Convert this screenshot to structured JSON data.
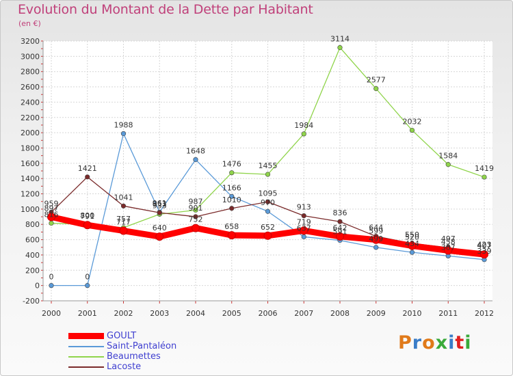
{
  "header": {
    "title": "Evolution du Montant de la Dette par Habitant",
    "subtitle": "(en €)"
  },
  "logo": {
    "text": "Proxiti",
    "colors": [
      "#e07a1a",
      "#3a7dc8",
      "#e07a1a",
      "#3aaa3a",
      "#3a7dc8",
      "#e02020",
      "#3aaa3a"
    ]
  },
  "chart_data": {
    "type": "line",
    "x": [
      "2000",
      "2001",
      "2002",
      "2003",
      "2004",
      "2005",
      "2006",
      "2007",
      "2008",
      "2009",
      "2010",
      "2011",
      "2012"
    ],
    "ylim": [
      -200,
      3200
    ],
    "yticks": [
      -200,
      0,
      200,
      400,
      600,
      800,
      1000,
      1200,
      1400,
      1600,
      1800,
      2000,
      2200,
      2400,
      2600,
      2800,
      3000,
      3200
    ],
    "grid": true,
    "legend": "bottom-left",
    "series": [
      {
        "name": "GOULT",
        "color": "#ff0000",
        "values": [
          897,
          791,
          717,
          640,
          752,
          658,
          652,
          719,
          642,
          599,
          520,
          458,
          407
        ],
        "labels": [
          "897",
          "791",
          "717",
          "640",
          "752",
          "658",
          "652",
          "719",
          "642",
          "599",
          "520",
          "458",
          "407"
        ]
      },
      {
        "name": "Saint-Pantaléon",
        "color": "#5a9ad8",
        "values": [
          0,
          0,
          1988,
          961,
          1648,
          1166,
          970,
          637,
          591,
          499,
          434,
          387,
          339
        ],
        "labels": [
          "0",
          "0",
          "1988",
          "961",
          "1648",
          "1166",
          "970",
          "637",
          "591",
          "499",
          "434",
          "387",
          "339"
        ]
      },
      {
        "name": "Beaumettes",
        "color": "#8fd44a",
        "values": [
          816,
          800,
          757,
          933,
          987,
          1476,
          1455,
          1984,
          3114,
          2577,
          2032,
          1584,
          1419
        ],
        "labels": [
          "816",
          "800",
          "757",
          "933",
          "987",
          "1476",
          "1455",
          "1984",
          "3114",
          "2577",
          "2032",
          "1584",
          "1419"
        ]
      },
      {
        "name": "Lacoste",
        "color": "#7a2a2a",
        "values": [
          959,
          1421,
          1041,
          953,
          901,
          1010,
          1095,
          913,
          836,
          644,
          550,
          497,
          423
        ],
        "labels": [
          "959",
          "1421",
          "1041",
          "953",
          "901",
          "1010",
          "1095",
          "913",
          "836",
          "644",
          "550",
          "497",
          "423"
        ]
      }
    ]
  }
}
